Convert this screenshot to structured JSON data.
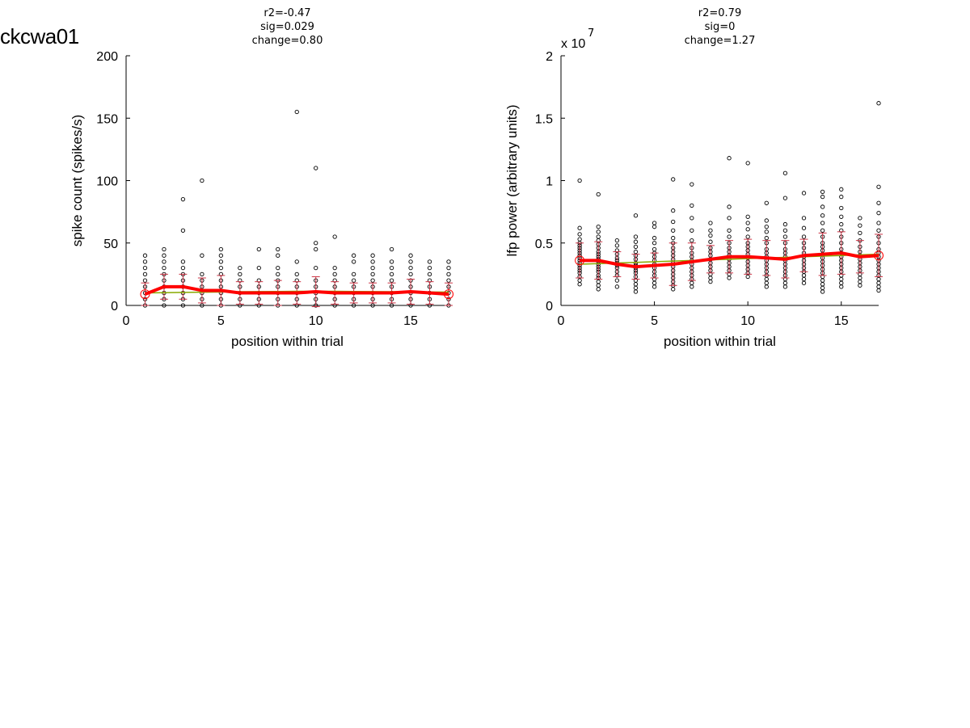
{
  "figure_title": "ckcwa01",
  "chart_data": [
    {
      "type": "scatter",
      "stats": [
        "r2=-0.47",
        "sig=0.029",
        "change=0.80"
      ],
      "xlabel": "position within trial",
      "ylabel": "spike count (spikes/s)",
      "xlim": [
        0,
        17
      ],
      "ylim": [
        0,
        200
      ],
      "xticks": [
        0,
        5,
        10,
        15
      ],
      "yticks": [
        0,
        50,
        100,
        150,
        200
      ],
      "exponent": "",
      "grid": false,
      "raw_points": [
        {
          "x": 1,
          "y": [
            0,
            5,
            10,
            15,
            20,
            25,
            30,
            35,
            40
          ]
        },
        {
          "x": 2,
          "y": [
            0,
            5,
            10,
            15,
            20,
            25,
            30,
            35,
            40,
            45
          ]
        },
        {
          "x": 3,
          "y": [
            0,
            5,
            10,
            15,
            20,
            25,
            30,
            35,
            60,
            85
          ]
        },
        {
          "x": 4,
          "y": [
            0,
            5,
            10,
            15,
            20,
            25,
            40,
            100
          ]
        },
        {
          "x": 5,
          "y": [
            0,
            5,
            10,
            15,
            20,
            25,
            30,
            35,
            40,
            45
          ]
        },
        {
          "x": 6,
          "y": [
            0,
            5,
            10,
            15,
            20,
            25,
            30
          ]
        },
        {
          "x": 7,
          "y": [
            0,
            5,
            10,
            15,
            20,
            30,
            45
          ]
        },
        {
          "x": 8,
          "y": [
            0,
            5,
            10,
            15,
            20,
            25,
            30,
            40,
            45
          ]
        },
        {
          "x": 9,
          "y": [
            0,
            5,
            10,
            15,
            20,
            25,
            35,
            155
          ]
        },
        {
          "x": 10,
          "y": [
            0,
            5,
            10,
            15,
            20,
            30,
            45,
            50,
            110
          ]
        },
        {
          "x": 11,
          "y": [
            0,
            5,
            10,
            15,
            20,
            25,
            30,
            55
          ]
        },
        {
          "x": 12,
          "y": [
            0,
            5,
            10,
            15,
            20,
            25,
            35,
            40
          ]
        },
        {
          "x": 13,
          "y": [
            0,
            5,
            10,
            15,
            20,
            25,
            30,
            35,
            40
          ]
        },
        {
          "x": 14,
          "y": [
            0,
            5,
            10,
            15,
            20,
            25,
            30,
            35,
            45
          ]
        },
        {
          "x": 15,
          "y": [
            0,
            5,
            10,
            15,
            20,
            25,
            30,
            35,
            40
          ]
        },
        {
          "x": 16,
          "y": [
            0,
            5,
            10,
            15,
            20,
            25,
            30,
            35
          ]
        },
        {
          "x": 17,
          "y": [
            0,
            5,
            10,
            15,
            20,
            25,
            30,
            35
          ]
        }
      ],
      "mean": [
        9,
        15,
        15,
        12,
        12,
        10,
        10,
        10,
        10,
        11,
        10,
        10,
        10,
        10,
        11,
        10,
        9
      ],
      "sd": [
        9,
        10,
        10,
        10,
        12,
        9,
        9,
        10,
        9,
        12,
        9,
        8,
        8,
        8,
        10,
        9,
        9
      ],
      "fit": [
        10,
        10.2,
        10.4,
        10.6,
        10.8,
        11,
        11.1,
        11.2,
        11.3,
        11.3,
        11.3,
        11.2,
        11.1,
        11,
        10.9,
        10.8,
        10.7
      ],
      "colors": {
        "points": "#000000",
        "mean": "#ff0000",
        "errorbar": "#cc3344",
        "fit": "#88aa00"
      }
    },
    {
      "type": "scatter",
      "stats": [
        "r2=0.79",
        "sig=0",
        "change=1.27"
      ],
      "xlabel": "position within trial",
      "ylabel": "lfp power (arbitrary units)",
      "xlim": [
        0,
        17
      ],
      "ylim": [
        0,
        2
      ],
      "xticks": [
        0,
        5,
        10,
        15
      ],
      "yticks": [
        0,
        0.5,
        1,
        1.5,
        2
      ],
      "exponent": "x 10",
      "exponent_power": "7",
      "grid": false,
      "raw_points": [
        {
          "x": 1,
          "y": [
            0.17,
            0.2,
            0.23,
            0.26,
            0.28,
            0.3,
            0.32,
            0.34,
            0.36,
            0.38,
            0.4,
            0.42,
            0.44,
            0.46,
            0.48,
            0.5,
            0.53,
            0.57,
            0.62,
            1.0
          ]
        },
        {
          "x": 2,
          "y": [
            0.13,
            0.16,
            0.19,
            0.22,
            0.24,
            0.27,
            0.29,
            0.31,
            0.33,
            0.35,
            0.37,
            0.39,
            0.41,
            0.43,
            0.46,
            0.49,
            0.52,
            0.55,
            0.59,
            0.63,
            0.89
          ]
        },
        {
          "x": 3,
          "y": [
            0.15,
            0.2,
            0.24,
            0.27,
            0.3,
            0.32,
            0.34,
            0.36,
            0.38,
            0.41,
            0.44,
            0.48,
            0.52
          ]
        },
        {
          "x": 4,
          "y": [
            0.11,
            0.14,
            0.17,
            0.2,
            0.23,
            0.26,
            0.28,
            0.3,
            0.32,
            0.34,
            0.37,
            0.4,
            0.43,
            0.47,
            0.51,
            0.55,
            0.72
          ]
        },
        {
          "x": 5,
          "y": [
            0.15,
            0.18,
            0.21,
            0.24,
            0.27,
            0.3,
            0.33,
            0.36,
            0.39,
            0.42,
            0.45,
            0.5,
            0.54,
            0.63,
            0.66
          ]
        },
        {
          "x": 6,
          "y": [
            0.13,
            0.16,
            0.19,
            0.22,
            0.25,
            0.28,
            0.31,
            0.34,
            0.37,
            0.4,
            0.43,
            0.46,
            0.5,
            0.54,
            0.6,
            0.67,
            0.76,
            1.01
          ]
        },
        {
          "x": 7,
          "y": [
            0.15,
            0.18,
            0.21,
            0.24,
            0.27,
            0.3,
            0.33,
            0.36,
            0.39,
            0.42,
            0.46,
            0.52,
            0.6,
            0.7,
            0.8,
            0.97
          ]
        },
        {
          "x": 8,
          "y": [
            0.19,
            0.22,
            0.25,
            0.28,
            0.31,
            0.34,
            0.37,
            0.4,
            0.43,
            0.46,
            0.51,
            0.56,
            0.6,
            0.66
          ]
        },
        {
          "x": 9,
          "y": [
            0.22,
            0.25,
            0.28,
            0.31,
            0.34,
            0.37,
            0.4,
            0.43,
            0.46,
            0.5,
            0.55,
            0.6,
            0.7,
            0.79,
            1.18
          ]
        },
        {
          "x": 10,
          "y": [
            0.23,
            0.26,
            0.29,
            0.32,
            0.35,
            0.38,
            0.41,
            0.44,
            0.47,
            0.5,
            0.55,
            0.61,
            0.66,
            0.71,
            1.14
          ]
        },
        {
          "x": 11,
          "y": [
            0.15,
            0.18,
            0.21,
            0.24,
            0.27,
            0.3,
            0.33,
            0.36,
            0.39,
            0.42,
            0.45,
            0.5,
            0.54,
            0.59,
            0.63,
            0.68,
            0.82
          ]
        },
        {
          "x": 12,
          "y": [
            0.15,
            0.18,
            0.21,
            0.24,
            0.27,
            0.3,
            0.33,
            0.36,
            0.39,
            0.42,
            0.45,
            0.5,
            0.55,
            0.6,
            0.65,
            0.86,
            1.06
          ]
        },
        {
          "x": 13,
          "y": [
            0.18,
            0.21,
            0.24,
            0.27,
            0.3,
            0.33,
            0.36,
            0.39,
            0.42,
            0.46,
            0.5,
            0.55,
            0.62,
            0.7,
            0.9
          ]
        },
        {
          "x": 14,
          "y": [
            0.11,
            0.14,
            0.17,
            0.2,
            0.23,
            0.26,
            0.29,
            0.32,
            0.35,
            0.38,
            0.41,
            0.44,
            0.47,
            0.5,
            0.55,
            0.6,
            0.66,
            0.72,
            0.79,
            0.87,
            0.91
          ]
        },
        {
          "x": 15,
          "y": [
            0.15,
            0.18,
            0.21,
            0.24,
            0.27,
            0.3,
            0.33,
            0.36,
            0.39,
            0.42,
            0.45,
            0.5,
            0.55,
            0.6,
            0.65,
            0.71,
            0.78,
            0.87,
            0.93
          ]
        },
        {
          "x": 16,
          "y": [
            0.16,
            0.19,
            0.22,
            0.25,
            0.28,
            0.31,
            0.34,
            0.37,
            0.4,
            0.43,
            0.47,
            0.52,
            0.58,
            0.64,
            0.7
          ]
        },
        {
          "x": 17,
          "y": [
            0.12,
            0.15,
            0.18,
            0.21,
            0.24,
            0.27,
            0.3,
            0.33,
            0.36,
            0.39,
            0.42,
            0.45,
            0.5,
            0.55,
            0.6,
            0.66,
            0.74,
            0.82,
            0.95,
            1.62
          ]
        }
      ],
      "mean": [
        0.36,
        0.36,
        0.33,
        0.31,
        0.32,
        0.33,
        0.35,
        0.37,
        0.39,
        0.39,
        0.38,
        0.37,
        0.4,
        0.41,
        0.42,
        0.39,
        0.4
      ],
      "sd": [
        0.14,
        0.15,
        0.1,
        0.1,
        0.1,
        0.17,
        0.15,
        0.11,
        0.13,
        0.14,
        0.14,
        0.15,
        0.13,
        0.17,
        0.17,
        0.13,
        0.17
      ],
      "fit": [
        0.33,
        0.335,
        0.34,
        0.345,
        0.35,
        0.355,
        0.36,
        0.365,
        0.37,
        0.375,
        0.38,
        0.385,
        0.39,
        0.395,
        0.4,
        0.405,
        0.41
      ],
      "colors": {
        "points": "#000000",
        "mean": "#ff0000",
        "errorbar": "#cc3344",
        "fit": "#88aa00"
      }
    }
  ]
}
